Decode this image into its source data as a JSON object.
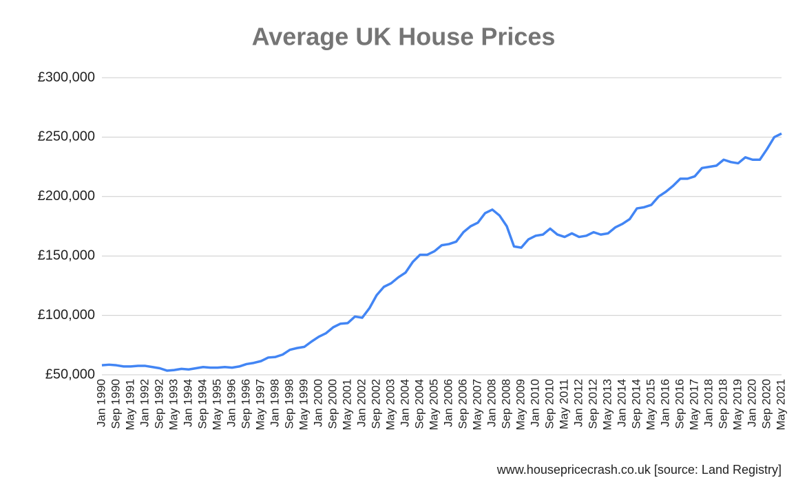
{
  "chart_data": {
    "type": "line",
    "title": "Average UK House Prices",
    "source": "www.housepricecrash.co.uk [source: Land Registry]",
    "categories": [
      "Jan 1990",
      null,
      "Sep 1990",
      null,
      "May 1991",
      null,
      "Jan 1992",
      null,
      "Sep 1992",
      null,
      "May 1993",
      null,
      "Jan 1994",
      null,
      "Sep 1994",
      null,
      "May 1995",
      null,
      "Jan 1996",
      null,
      "Sep 1996",
      null,
      "May 1997",
      null,
      "Jan 1998",
      null,
      "Sep 1998",
      null,
      "May 1999",
      null,
      "Jan 2000",
      null,
      "Sep 2000",
      null,
      "May 2001",
      null,
      "Jan 2002",
      null,
      "Sep 2002",
      null,
      "May 2003",
      null,
      "Jan 2004",
      null,
      "Sep 2004",
      null,
      "May 2005",
      null,
      "Jan 2006",
      null,
      "Sep 2006",
      null,
      "May 2007",
      null,
      "Jan 2008",
      null,
      "Sep 2008",
      null,
      "May 2009",
      null,
      "Jan 2010",
      null,
      "Sep 2010",
      null,
      "May 2011",
      null,
      "Jan 2012",
      null,
      "Sep 2012",
      null,
      "May 2013",
      null,
      "Jan 2014",
      null,
      "Sep 2014",
      null,
      "May 2015",
      null,
      "Jan 2016",
      null,
      "Sep 2016",
      null,
      "May 2017",
      null,
      "Jan 2018",
      null,
      "Sep 2018",
      null,
      "May 2019",
      null,
      "Jan 2020",
      null,
      "Sep 2020",
      null,
      "May 2021"
    ],
    "series": [
      {
        "color": "#4285f4",
        "values": [
          58000,
          58500,
          58000,
          57000,
          57000,
          57500,
          57500,
          56500,
          55500,
          53500,
          54000,
          55000,
          54500,
          55500,
          56500,
          56000,
          56000,
          56500,
          56000,
          57000,
          59000,
          60000,
          61500,
          64500,
          65000,
          67000,
          71000,
          72500,
          73500,
          78000,
          82000,
          85000,
          90000,
          93000,
          93500,
          99000,
          98000,
          106000,
          117000,
          124000,
          127000,
          132000,
          136000,
          145000,
          151000,
          151000,
          154000,
          159000,
          160000,
          162000,
          170000,
          175000,
          178000,
          186000,
          189000,
          184000,
          175000,
          158000,
          157000,
          164000,
          167000,
          168000,
          173000,
          168000,
          166000,
          169000,
          166000,
          167000,
          170000,
          168000,
          169000,
          174000,
          177000,
          181000,
          190000,
          191000,
          193000,
          200000,
          204000,
          209000,
          215000,
          215000,
          217000,
          224000,
          225000,
          226000,
          231000,
          229000,
          228000,
          233000,
          231000,
          231000,
          240000,
          250000,
          253000
        ]
      }
    ],
    "ylim": [
      50000,
      300000
    ],
    "yticks": [
      {
        "value": 50000,
        "label": "£50,000"
      },
      {
        "value": 100000,
        "label": "£100,000"
      },
      {
        "value": 150000,
        "label": "£150,000"
      },
      {
        "value": 200000,
        "label": "£200,000"
      },
      {
        "value": 250000,
        "label": "£250,000"
      },
      {
        "value": 300000,
        "label": "£300,000"
      }
    ],
    "grid": true
  }
}
